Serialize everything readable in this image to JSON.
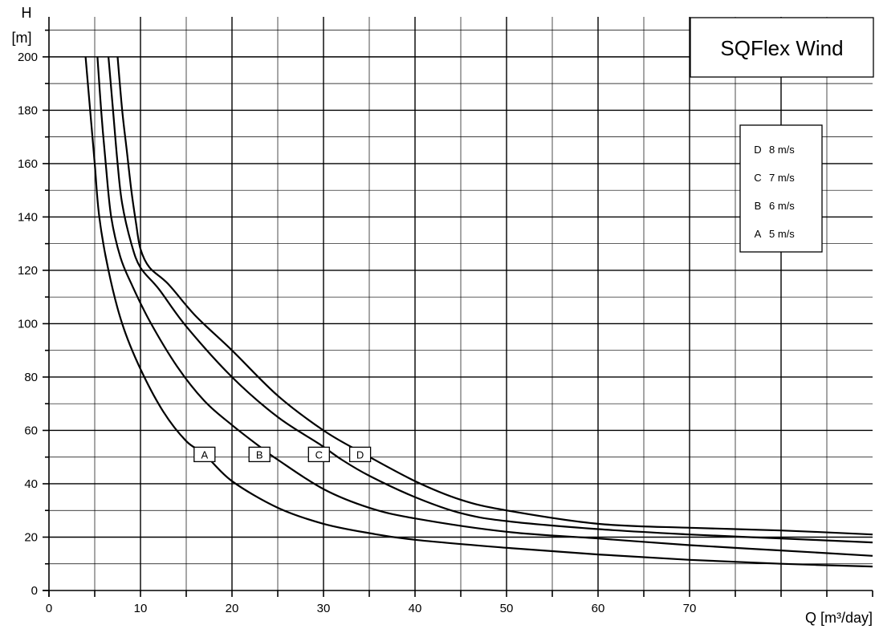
{
  "chart_data": {
    "type": "line",
    "title": "SQFlex Wind",
    "xlabel": "Q [m³/day]",
    "ylabel": "H",
    "ylabel_unit": "[m]",
    "xlim": [
      0,
      90
    ],
    "ylim": [
      0,
      215
    ],
    "x_ticks": [
      0,
      10,
      20,
      30,
      40,
      50,
      60,
      70
    ],
    "y_ticks": [
      0,
      20,
      40,
      60,
      80,
      100,
      120,
      140,
      160,
      180,
      200
    ],
    "x_minor_step": 5,
    "y_minor_step": 10,
    "grid": true,
    "legend_position": "top-right",
    "legend": [
      {
        "key": "D",
        "label": "8 m/s"
      },
      {
        "key": "C",
        "label": "7 m/s"
      },
      {
        "key": "B",
        "label": "6 m/s"
      },
      {
        "key": "A",
        "label": "5 m/s"
      }
    ],
    "series": [
      {
        "name": "A",
        "tag_at": [
          17,
          51
        ],
        "points": [
          [
            4,
            200
          ],
          [
            4.5,
            180
          ],
          [
            5,
            160
          ],
          [
            5.5,
            140
          ],
          [
            6.5,
            120
          ],
          [
            8,
            100
          ],
          [
            10,
            83
          ],
          [
            12.5,
            67
          ],
          [
            15,
            56
          ],
          [
            17,
            51
          ],
          [
            20,
            41
          ],
          [
            25,
            31
          ],
          [
            30,
            25
          ],
          [
            35,
            21.5
          ],
          [
            40,
            19
          ],
          [
            50,
            16
          ],
          [
            60,
            13.5
          ],
          [
            70,
            11.5
          ],
          [
            80,
            10
          ],
          [
            90,
            9
          ]
        ]
      },
      {
        "name": "B",
        "tag_at": [
          23,
          51
        ],
        "points": [
          [
            5.3,
            200
          ],
          [
            5.7,
            180
          ],
          [
            6.2,
            160
          ],
          [
            6.8,
            140
          ],
          [
            7.8,
            125
          ],
          [
            9,
            115
          ],
          [
            11,
            101
          ],
          [
            14,
            84
          ],
          [
            17,
            71
          ],
          [
            20,
            62
          ],
          [
            23,
            54
          ],
          [
            25,
            49
          ],
          [
            30,
            38
          ],
          [
            35,
            31
          ],
          [
            40,
            27
          ],
          [
            50,
            22
          ],
          [
            60,
            19.5
          ],
          [
            70,
            17
          ],
          [
            80,
            15
          ],
          [
            90,
            13
          ]
        ]
      },
      {
        "name": "C",
        "tag_at": [
          29.5,
          51
        ],
        "points": [
          [
            6.5,
            200
          ],
          [
            7,
            180
          ],
          [
            7.5,
            160
          ],
          [
            8,
            145
          ],
          [
            9,
            130
          ],
          [
            10,
            121
          ],
          [
            12,
            113
          ],
          [
            15,
            99
          ],
          [
            20,
            80
          ],
          [
            25,
            65
          ],
          [
            29.5,
            55
          ],
          [
            32,
            49
          ],
          [
            35,
            43
          ],
          [
            40,
            35
          ],
          [
            45,
            29
          ],
          [
            50,
            26
          ],
          [
            60,
            23
          ],
          [
            70,
            21
          ],
          [
            80,
            19.5
          ],
          [
            90,
            18
          ]
        ]
      },
      {
        "name": "D",
        "tag_at": [
          34,
          51
        ],
        "points": [
          [
            7.5,
            200
          ],
          [
            8,
            180
          ],
          [
            8.5,
            165
          ],
          [
            9,
            150
          ],
          [
            9.5,
            138
          ],
          [
            10,
            128
          ],
          [
            11,
            121
          ],
          [
            13,
            115
          ],
          [
            16,
            103
          ],
          [
            20,
            90
          ],
          [
            25,
            73
          ],
          [
            30,
            60
          ],
          [
            34,
            52
          ],
          [
            40,
            41
          ],
          [
            45,
            34
          ],
          [
            50,
            30
          ],
          [
            60,
            25
          ],
          [
            70,
            23.5
          ],
          [
            80,
            22.5
          ],
          [
            90,
            21
          ]
        ]
      }
    ]
  }
}
